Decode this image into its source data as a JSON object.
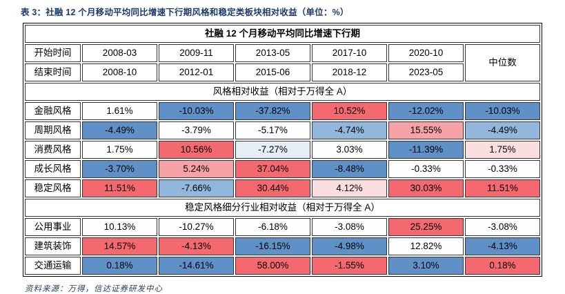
{
  "page": {
    "title": "表 3：社融 12 个月移动平均同比增速下行期风格和稳定类板块相对收益（单位：%）",
    "source_note": "资料来源：万得，信达证券研发中心"
  },
  "palette": {
    "w": "#fdfdff",
    "b1": "#e6edf7",
    "b2": "#93b6dc",
    "b3": "#5f90c7",
    "r1": "#fbdee0",
    "r2": "#f6a2a7",
    "r3": "#f4696f"
  },
  "table": {
    "main_header": "社融 12 个月移动平均同比增速下行期",
    "median_label": "中位数",
    "header_rows": [
      {
        "label": "开始时间",
        "values": [
          "2008-03",
          "2009-11",
          "2013-05",
          "2017-10",
          "2020-10"
        ]
      },
      {
        "label": "结束时间",
        "values": [
          "2008-10",
          "2012-01",
          "2015-06",
          "2018-12",
          "2023-05"
        ]
      }
    ],
    "sections": [
      {
        "header": "风格相对收益（相对于万得全 A）",
        "rows": [
          {
            "label": "金融风格",
            "values": [
              "1.61%",
              "-10.03%",
              "-37.82%",
              "10.52%",
              "-12.02%",
              "-10.03%"
            ],
            "colors": [
              "w",
              "b3",
              "b3",
              "r3",
              "b3",
              "b3"
            ]
          },
          {
            "label": "周期风格",
            "values": [
              "-4.49%",
              "-3.79%",
              "-5.17%",
              "-4.74%",
              "15.55%",
              "-4.49%"
            ],
            "colors": [
              "b3",
              "w",
              "w",
              "b2",
              "r2",
              "b2"
            ]
          },
          {
            "label": "消费风格",
            "values": [
              "1.75%",
              "10.56%",
              "-7.27%",
              "3.03%",
              "-11.39%",
              "1.75%"
            ],
            "colors": [
              "w",
              "r3",
              "b1",
              "w",
              "b3",
              "r1"
            ]
          },
          {
            "label": "成长风格",
            "values": [
              "-3.70%",
              "5.24%",
              "37.04%",
              "-8.48%",
              "-0.33%",
              "-0.33%"
            ],
            "colors": [
              "b3",
              "r2",
              "r3",
              "b3",
              "w",
              "w"
            ]
          },
          {
            "label": "稳定风格",
            "values": [
              "11.51%",
              "-7.66%",
              "30.44%",
              "4.12%",
              "30.03%",
              "11.51%"
            ],
            "colors": [
              "r3",
              "b2",
              "r3",
              "r1",
              "r3",
              "r3"
            ]
          }
        ]
      },
      {
        "header": "稳定风格细分行业相对收益（相对于万得全 A）",
        "rows": [
          {
            "label": "公用事业",
            "values": [
              "10.13%",
              "-10.27%",
              "-6.18%",
              "-3.08%",
              "25.25%",
              "-3.08%"
            ],
            "colors": [
              "w",
              "w",
              "w",
              "w",
              "r3",
              "w"
            ]
          },
          {
            "label": "建筑装饰",
            "values": [
              "14.57%",
              "-4.13%",
              "-16.15%",
              "-4.98%",
              "12.82%",
              "-4.13%"
            ],
            "colors": [
              "r3",
              "r3",
              "b3",
              "b3",
              "w",
              "b3"
            ]
          },
          {
            "label": "交通运输",
            "values": [
              "0.18%",
              "-14.61%",
              "58.00%",
              "-1.55%",
              "3.10%",
              "0.18%"
            ],
            "colors": [
              "b3",
              "b3",
              "r3",
              "r3",
              "b3",
              "r3"
            ]
          }
        ]
      }
    ]
  }
}
